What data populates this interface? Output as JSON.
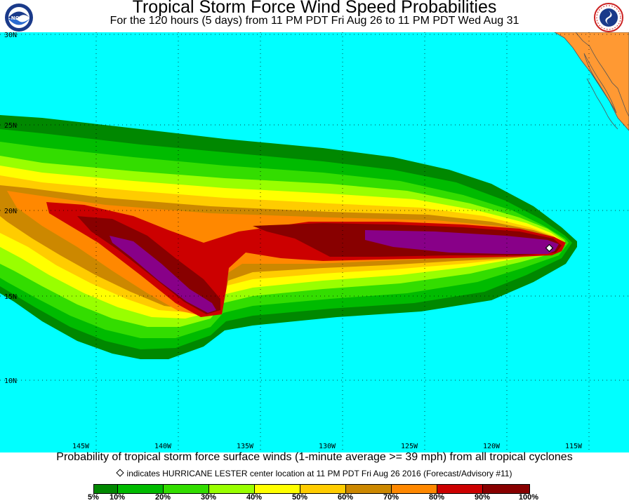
{
  "header": {
    "title": "Tropical Storm Force Wind Speed Probabilities",
    "subtitle": "For the 120 hours (5 days) from 11 PM PDT Fri Aug 26 to 11 PM PDT Wed Aug 31"
  },
  "logos": {
    "left": "NOAA",
    "right": "NATIONAL WEATHER SERVICE"
  },
  "map": {
    "ocean_color": "#00ffff",
    "land_color": "#ff9933",
    "lat_labels": [
      "30N",
      "25N",
      "20N",
      "15N",
      "10N"
    ],
    "lon_labels": [
      "145W",
      "140W",
      "135W",
      "130W",
      "125W",
      "120W",
      "115W"
    ],
    "storm": {
      "name": "HURRICANE LESTER",
      "center_lat": 18.0,
      "center_lon": -116.3
    }
  },
  "captions": {
    "line1": "Probability of tropical storm force surface winds (1-minute average >= 39 mph) from all tropical cyclones",
    "line2": "indicates HURRICANE LESTER center location at 11 PM PDT Fri Aug 26 2016 (Forecast/Advisory #11)"
  },
  "legend": {
    "colors": [
      "#008800",
      "#00bb00",
      "#33dd00",
      "#99ff00",
      "#ffff00",
      "#ffcc00",
      "#cc8800",
      "#ff8800",
      "#cc0000",
      "#880000",
      "#880088"
    ],
    "labels": [
      "5%",
      "10%",
      "20%",
      "30%",
      "40%",
      "50%",
      "60%",
      "70%",
      "80%",
      "90%",
      "100%"
    ]
  }
}
